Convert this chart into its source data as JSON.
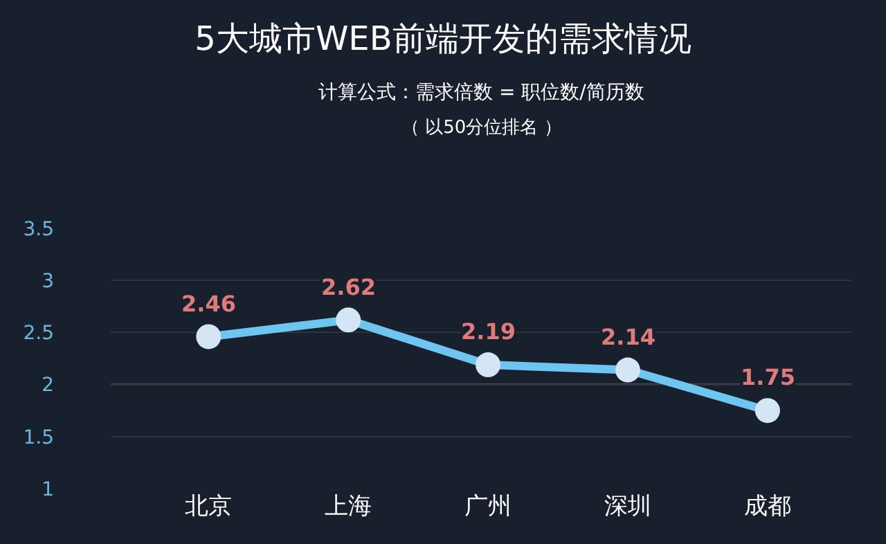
{
  "chart_data": {
    "type": "line",
    "title": "5大城市WEB前端开发的需求情况",
    "subtitle": "计算公式：需求倍数 = 职位数/简历数",
    "annotations": [
      "（ 以50分位排名 ）"
    ],
    "categories": [
      "北京",
      "上海",
      "广州",
      "深圳",
      "成都"
    ],
    "series": [
      {
        "color": "#6ec6f0",
        "values": [
          2.46,
          2.62,
          2.19,
          2.14,
          1.75
        ]
      }
    ],
    "ylim": [
      1,
      3.5
    ],
    "yticks": [
      1,
      1.5,
      2,
      2.5,
      3,
      3.5
    ],
    "grid": "y",
    "marker": "circle",
    "line_style": "solid",
    "data_labels": true,
    "ref_lines": [
      {
        "axis": "y",
        "value": 2,
        "color": "#b06060"
      }
    ]
  }
}
